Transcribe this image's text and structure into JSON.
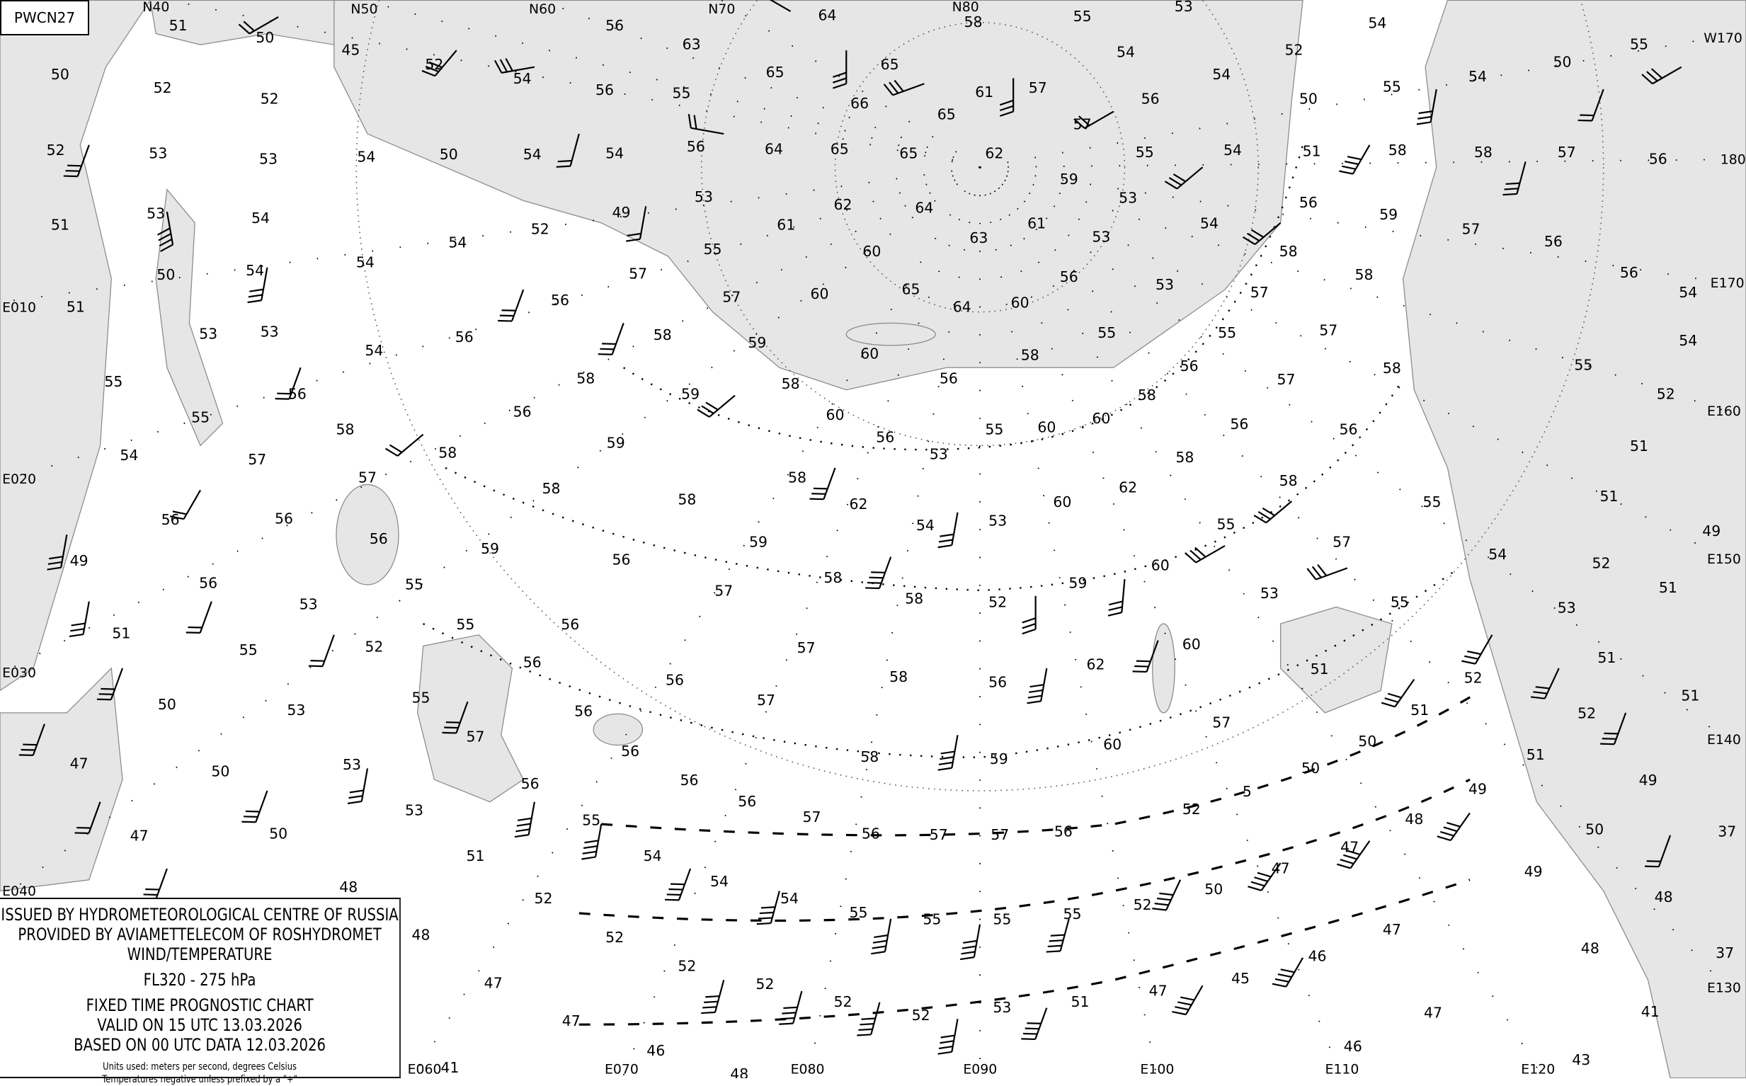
{
  "chart_code": "PWCN27",
  "legend": {
    "issuer": "ISSUED BY HYDROMETEOROLOGICAL CENTRE OF RUSSIA",
    "provider": "PROVIDED BY AVIAMETTELECOM OF ROSHYDROMET",
    "product": "WIND/TEMPERATURE",
    "level": "FL320 - 275 hPa",
    "chart_type": "FIXED TIME PROGNOSTIC CHART",
    "valid": "VALID ON 15 UTC 13.03.2026",
    "based": "BASED ON 00 UTC DATA 12.03.2026",
    "units": "Units used: meters per second, degrees Celsius",
    "note": "Temperatures negative unless prefixed by a \"+\""
  },
  "colors": {
    "sea": "#e6e6e6",
    "land": "#ffffff",
    "coast": "#8a8a8a",
    "ink": "#000000"
  },
  "graticule_labels": [
    "N40",
    "N50",
    "N60",
    "N70",
    "N80",
    "W170",
    "180",
    "E170",
    "E160",
    "E150",
    "E140",
    "E130",
    "E120",
    "E110",
    "E100",
    "E090",
    "E080",
    "E070",
    "E060",
    "E040",
    "E030",
    "E020",
    "E010"
  ],
  "temperatures": [
    "51",
    "50",
    "45",
    "52",
    "54",
    "56",
    "63",
    "64",
    "58",
    "55",
    "53",
    "52",
    "54",
    "55",
    "50",
    "54",
    "55",
    "57",
    "58",
    "56",
    "58",
    "59",
    "57",
    "56",
    "56",
    "54",
    "54",
    "55",
    "52",
    "51",
    "51",
    "49",
    "52",
    "51",
    "53",
    "51",
    "51",
    "52",
    "51",
    "49",
    "50",
    "49",
    "48",
    "48",
    "41",
    "43",
    "37",
    "37",
    "50",
    "52",
    "52",
    "52",
    "53",
    "53",
    "53",
    "51",
    "54",
    "50",
    "54",
    "51",
    "53",
    "53",
    "55",
    "56",
    "55",
    "54",
    "57",
    "58",
    "57",
    "56",
    "56",
    "56",
    "49",
    "56",
    "53",
    "55",
    "51",
    "55",
    "52",
    "55",
    "56",
    "50",
    "53",
    "55",
    "57",
    "53",
    "47",
    "50",
    "53",
    "56",
    "47",
    "50",
    "51",
    "55",
    "48",
    "52",
    "54",
    "54",
    "54",
    "55",
    "55",
    "55",
    "55",
    "52",
    "50",
    "47",
    "47",
    "48",
    "49",
    "52",
    "52",
    "52",
    "52",
    "52",
    "53",
    "51",
    "47",
    "45",
    "46",
    "47",
    "47",
    "46",
    "48",
    "47",
    "47",
    "46",
    "48",
    "41",
    "54",
    "50",
    "54",
    "54",
    "56",
    "64",
    "65",
    "65",
    "62",
    "57",
    "55",
    "54",
    "51",
    "50",
    "54",
    "56",
    "57",
    "61",
    "65",
    "66",
    "65",
    "65",
    "56",
    "55",
    "54",
    "53",
    "61",
    "62",
    "64",
    "63",
    "61",
    "59",
    "53",
    "53",
    "54",
    "56",
    "58",
    "58",
    "57",
    "53",
    "56",
    "60",
    "64",
    "65",
    "60",
    "60",
    "55",
    "55",
    "56",
    "57",
    "58",
    "57",
    "56",
    "56",
    "58",
    "58",
    "60",
    "60",
    "55",
    "58",
    "56",
    "60",
    "58",
    "60",
    "56",
    "53",
    "59",
    "59",
    "58",
    "58",
    "56",
    "57",
    "55",
    "57",
    "56",
    "54",
    "54",
    "52",
    "49",
    "54",
    "56",
    "58",
    "58",
    "59",
    "58",
    "58",
    "62",
    "54",
    "53",
    "60",
    "62",
    "55",
    "58",
    "57",
    "53",
    "60",
    "59",
    "52",
    "58",
    "58",
    "59",
    "56",
    "59",
    "56",
    "57",
    "57",
    "56",
    "56",
    "57",
    "56",
    "56",
    "58",
    "58",
    "56",
    "62",
    "60",
    "57",
    "60",
    "59",
    "55",
    "54",
    "55",
    "51",
    "52",
    "51",
    "50",
    "50",
    "5",
    "52",
    "56",
    "57",
    "57",
    "56",
    "57",
    "56"
  ]
}
